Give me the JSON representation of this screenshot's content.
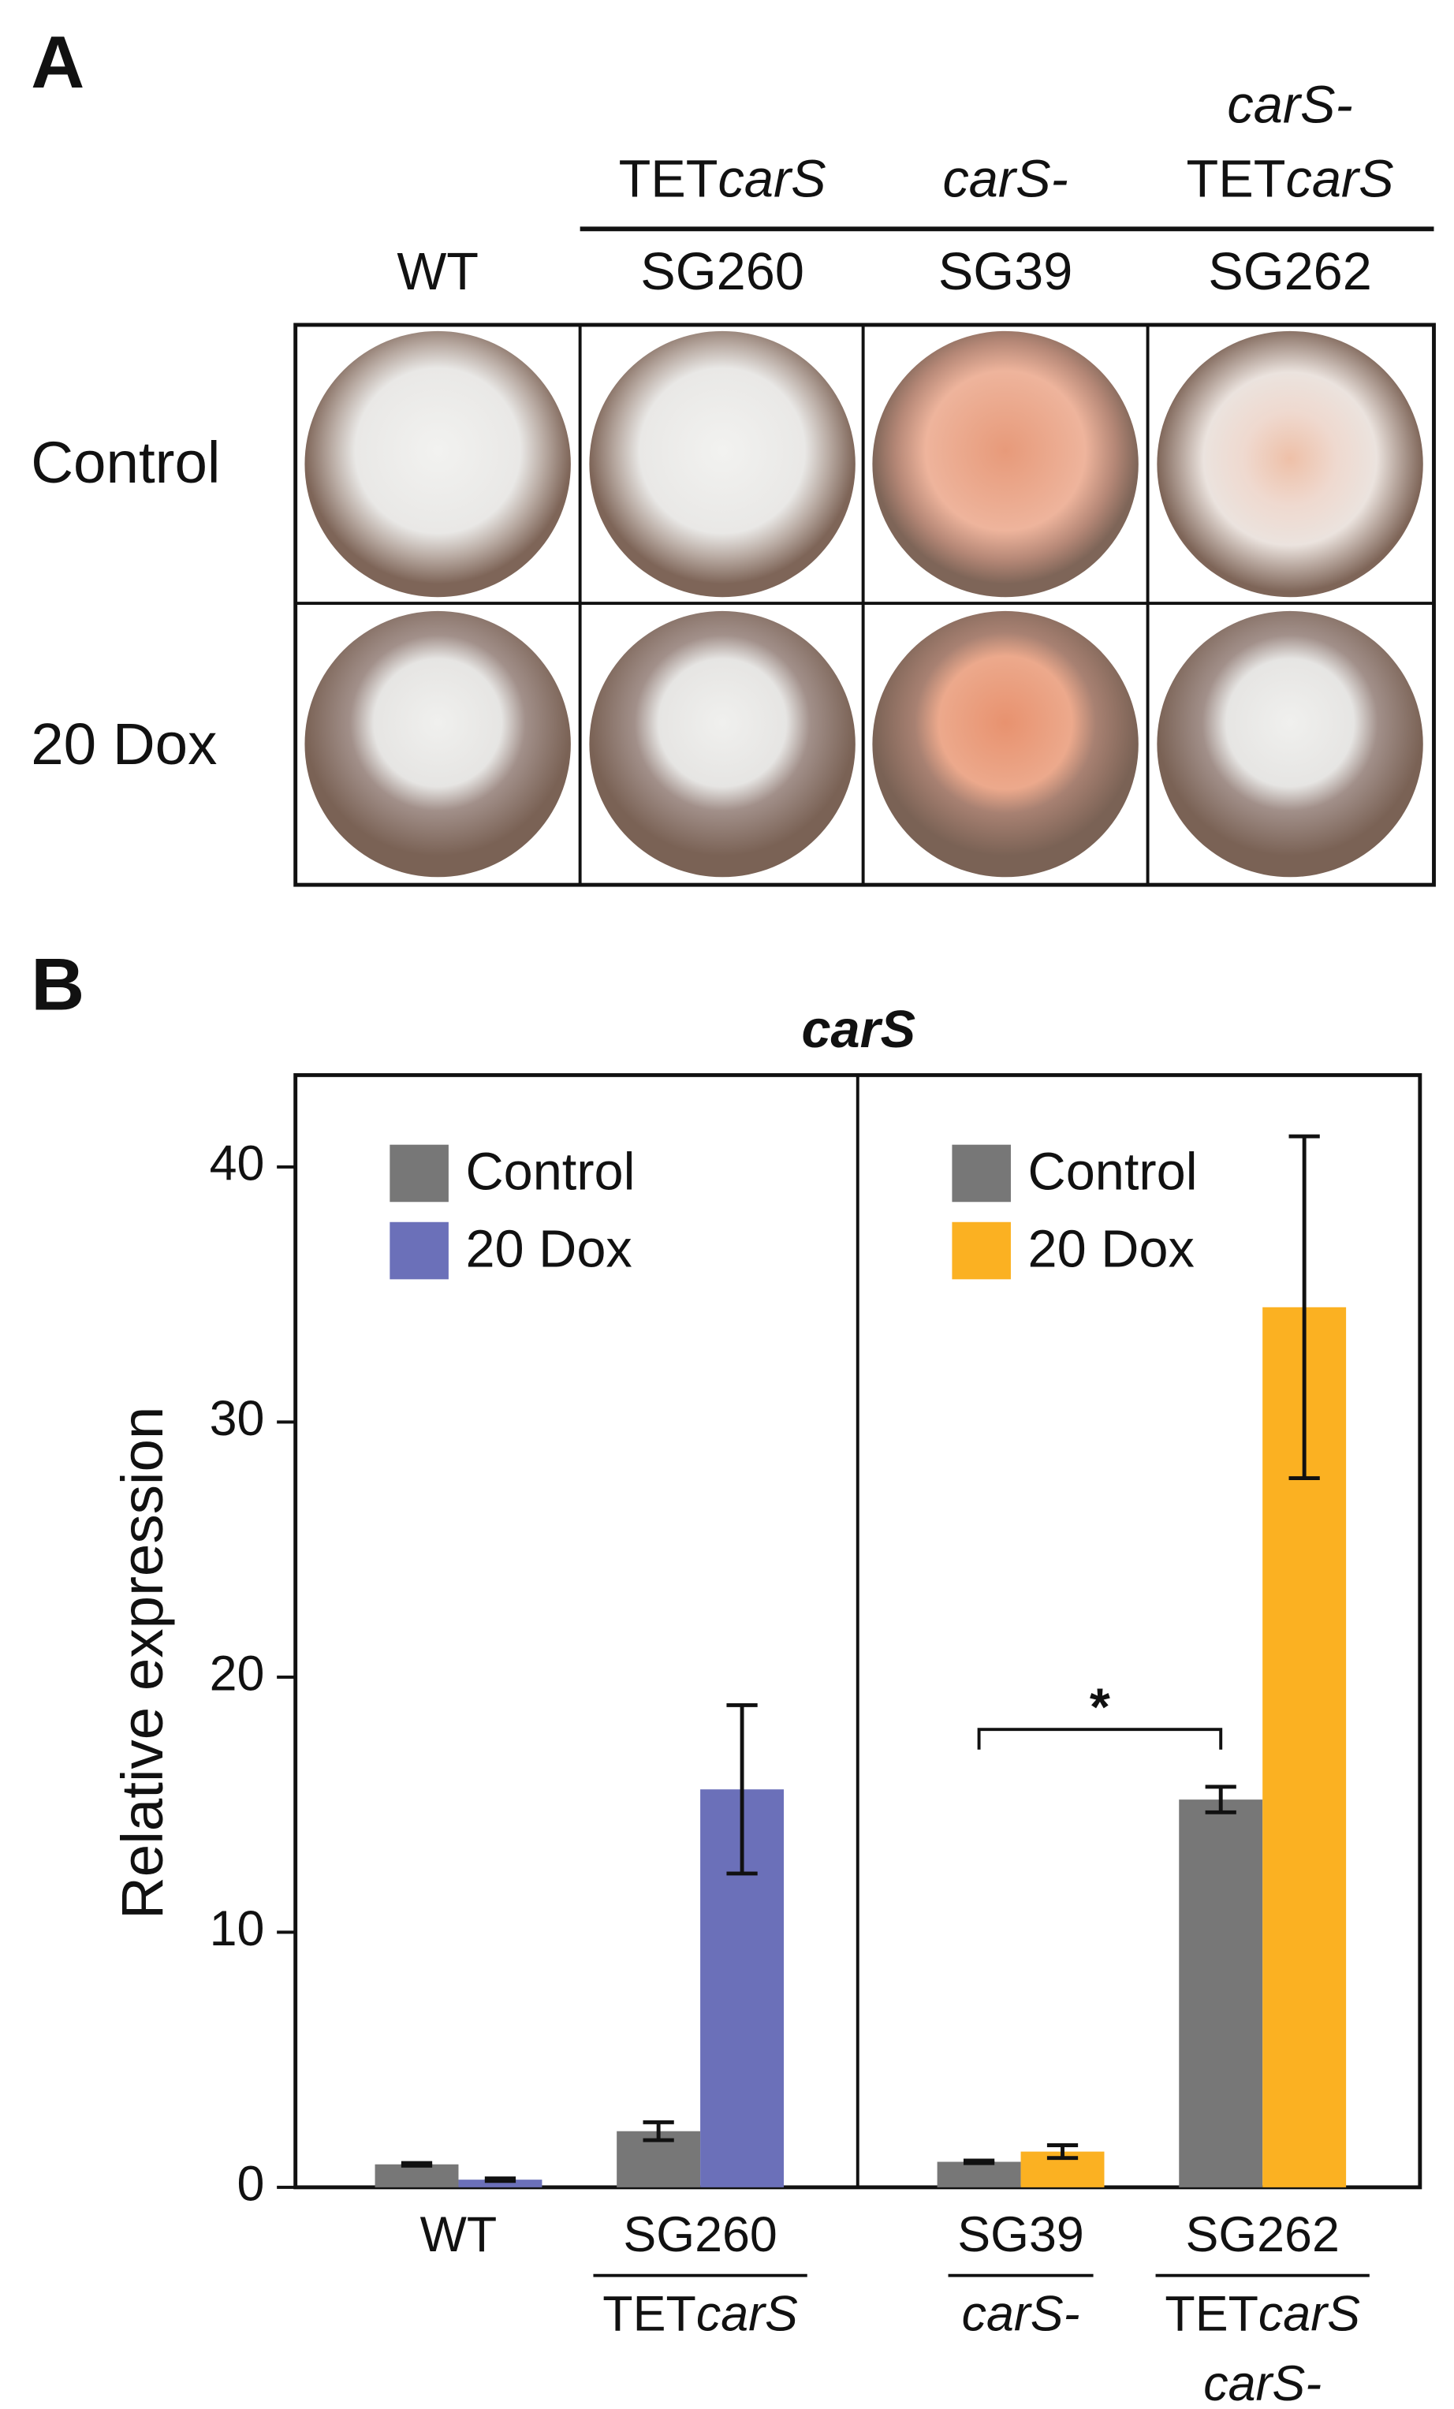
{
  "panel_a": {
    "label": "A",
    "row_labels": [
      "Control",
      "20 Dox"
    ],
    "columns": [
      {
        "strain": "WT",
        "genotype": []
      },
      {
        "strain": "SG260",
        "genotype": [
          [
            {
              "text": "TET"
            },
            {
              "text": "carS",
              "italic": true
            }
          ]
        ]
      },
      {
        "strain": "SG39",
        "genotype": [
          [
            {
              "text": "carS-",
              "italic": true
            }
          ]
        ]
      },
      {
        "strain": "SG262",
        "genotype": [
          [
            {
              "text": "carS-",
              "italic": true
            }
          ],
          [
            {
              "text": "TET"
            },
            {
              "text": "carS",
              "italic": true
            }
          ]
        ]
      }
    ]
  },
  "chart_data": {
    "type": "bar",
    "panel_label": "B",
    "title": "carS",
    "y_label": "Relative expression",
    "ylim": [
      0,
      43.6
    ],
    "yticks": [
      0,
      10,
      20,
      30,
      40
    ],
    "facets": [
      {
        "categories": [
          {
            "name": "WT",
            "genotype": []
          },
          {
            "name": "SG260",
            "genotype": [
              [
                {
                  "text": "TET"
                },
                {
                  "text": "carS",
                  "italic": true
                }
              ]
            ]
          }
        ],
        "series": [
          {
            "name": "Control",
            "color": "#777777",
            "values": [
              0.9,
              2.2
            ],
            "errors": [
              0.05,
              0.35
            ]
          },
          {
            "name": "20 Dox",
            "color": "#6b70b9",
            "values": [
              0.3,
              15.6
            ],
            "errors": [
              0.05,
              3.3
            ]
          }
        ]
      },
      {
        "categories": [
          {
            "name": "SG39",
            "genotype": [
              [
                {
                  "text": "carS-",
                  "italic": true
                }
              ]
            ]
          },
          {
            "name": "SG262",
            "genotype": [
              [
                {
                  "text": "TET"
                },
                {
                  "text": "carS",
                  "italic": true
                }
              ],
              [
                {
                  "text": "carS-",
                  "italic": true
                }
              ]
            ]
          }
        ],
        "series": [
          {
            "name": "Control",
            "color": "#777777",
            "values": [
              1.0,
              15.2
            ],
            "errors": [
              0.05,
              0.5
            ]
          },
          {
            "name": "20 Dox",
            "color": "#fbb122",
            "values": [
              1.4,
              34.5
            ],
            "errors": [
              0.25,
              6.7
            ]
          }
        ]
      }
    ],
    "annotation": "*"
  }
}
